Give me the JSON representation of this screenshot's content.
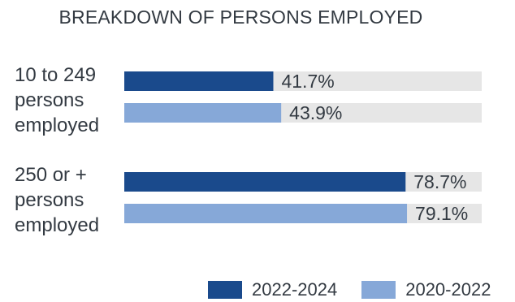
{
  "chart_data": {
    "type": "bar",
    "orientation": "horizontal",
    "title": "BREAKDOWN OF PERSONS EMPLOYED",
    "categories": [
      [
        "10 to 249",
        "persons",
        "employed"
      ],
      [
        "250 or +",
        "persons",
        "employed"
      ]
    ],
    "series": [
      {
        "name": "2022-2024",
        "color": "#1a4a8c",
        "values": [
          41.7,
          78.7
        ],
        "labels": [
          "41.7%",
          "78.7%"
        ]
      },
      {
        "name": "2020-2022",
        "color": "#86a8d8",
        "values": [
          43.9,
          79.1
        ],
        "labels": [
          "43.9%",
          "79.1%"
        ]
      }
    ],
    "xlim": [
      0,
      100
    ],
    "background_track_color": "#e6e6e6",
    "legend_position": "bottom",
    "grid": false
  }
}
